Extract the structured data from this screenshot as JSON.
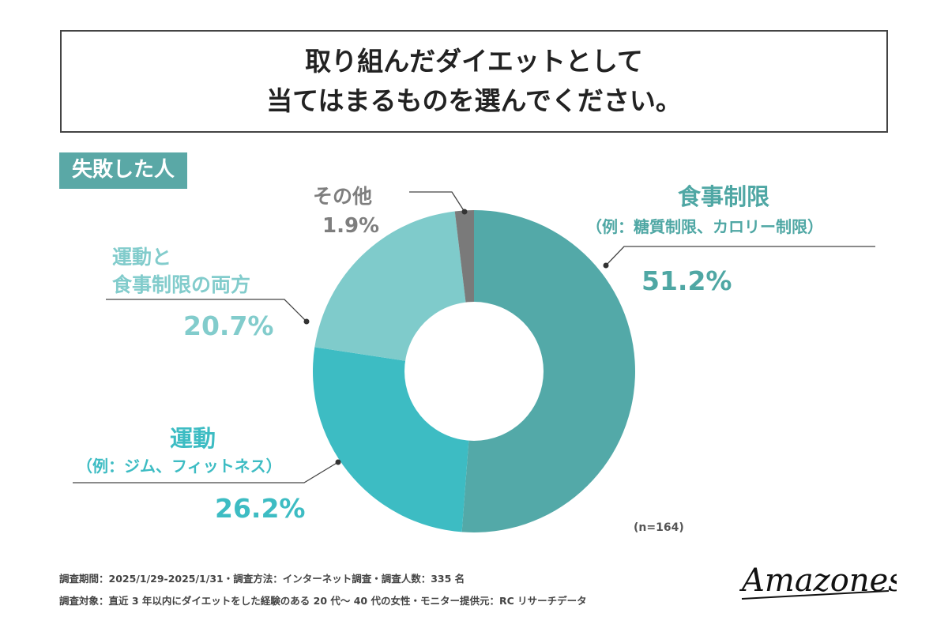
{
  "title": {
    "line1": "取り組んだダイエットとして",
    "line2": "当てはまるものを選んでください。"
  },
  "group_label": "失敗した人",
  "sample_size": "(n=164)",
  "footnotes": {
    "period": "調査期間：2025/1/29-2025/1/31・調査方法：インターネット調査・調査人数：335 名",
    "target": "調査対象：直近 3 年以内にダイエットをした経験のある 20 代〜 40 代の女性・モニター提供元：RC リサーチデータ"
  },
  "brand": "Amazones",
  "labels": {
    "diet": {
      "name": "食事制限",
      "desc": "（例：糖質制限、カロリー制限）",
      "value": "51.2%"
    },
    "exercise": {
      "name": "運動",
      "desc": "（例：ジム、フィットネス）",
      "value": "26.2%"
    },
    "both": {
      "line1": "運動と",
      "line2": "食事制限の両方",
      "value": "20.7%"
    },
    "other": {
      "name": "その他",
      "value": "1.9%"
    }
  },
  "colors": {
    "diet": "#53a9a8",
    "exercise": "#3dbcc3",
    "both": "#7fcbcb",
    "other": "#7a7a7a",
    "badge": "#5aa8a6"
  },
  "chart_data": {
    "type": "pie",
    "donut": true,
    "categories": [
      "食事制限",
      "運動",
      "運動と食事制限の両方",
      "その他"
    ],
    "values": [
      51.2,
      26.2,
      20.7,
      1.9
    ],
    "unit": "%",
    "n": 164,
    "title": "取り組んだダイエットとして当てはまるものを選んでください。"
  }
}
